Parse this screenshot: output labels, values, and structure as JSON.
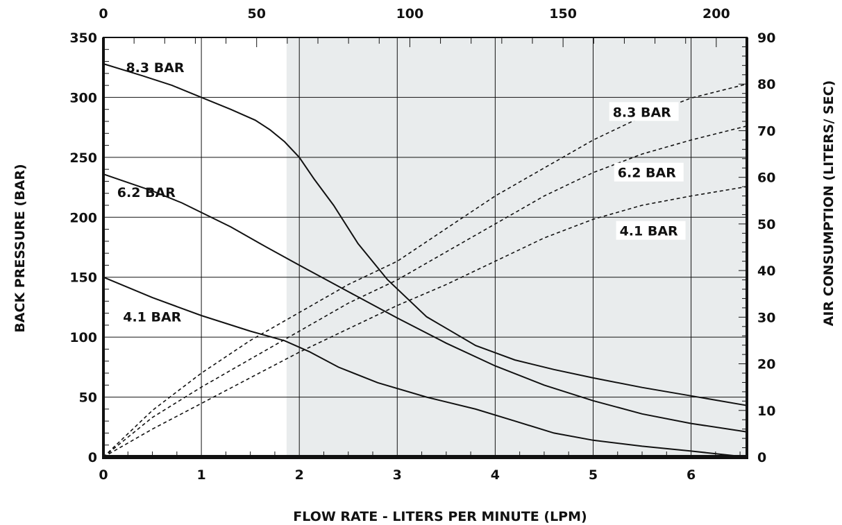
{
  "chart_data": {
    "type": "line",
    "xlabel": "FLOW RATE - LITERS PER MINUTE (LPM)",
    "ylabel_left": "BACK PRESSURE (BAR)",
    "ylabel_right": "AIR CONSUMPTION (LITERS/ SEC)",
    "x_ticks_bottom": [
      "0",
      "1",
      "2",
      "3",
      "4",
      "5",
      "6"
    ],
    "x_ticks_top": [
      "0",
      "50",
      "100",
      "150",
      "200"
    ],
    "y_ticks_left": [
      "0",
      "50",
      "100",
      "150",
      "200",
      "250",
      "300",
      "350"
    ],
    "y_ticks_right": [
      "0",
      "10",
      "20",
      "30",
      "40",
      "50",
      "60",
      "70",
      "80",
      "90"
    ],
    "x_range_lpm": [
      0,
      6.57
    ],
    "x_range_top": [
      0,
      210
    ],
    "y_range_left": [
      0,
      350
    ],
    "y_range_right": [
      0,
      90
    ],
    "shaded_region_x": [
      1.87,
      6.57
    ],
    "grid": true,
    "pressure_series": [
      {
        "name": "8.3 BAR",
        "label": "8.3 BAR",
        "x": [
          0,
          0.4,
          0.7,
          1.0,
          1.3,
          1.55,
          1.7,
          1.85,
          2.0,
          2.15,
          2.35,
          2.6,
          2.9,
          3.3,
          3.8,
          4.2,
          4.6,
          5.0,
          5.5,
          6.0,
          6.57
        ],
        "y": [
          328,
          318,
          310,
          300,
          290,
          281,
          273,
          263,
          250,
          232,
          210,
          178,
          148,
          117,
          93,
          81,
          73,
          66,
          58,
          51,
          43
        ]
      },
      {
        "name": "6.2 BAR",
        "label": "6.2 BAR",
        "x": [
          0,
          0.5,
          0.8,
          1.0,
          1.3,
          1.6,
          2.0,
          2.5,
          3.0,
          3.5,
          4.0,
          4.5,
          5.0,
          5.5,
          6.0,
          6.57
        ],
        "y": [
          236,
          222,
          212,
          204,
          192,
          178,
          160,
          138,
          116,
          95,
          76,
          60,
          47,
          36,
          28,
          21
        ]
      },
      {
        "name": "4.1 BAR",
        "label": "4.1 BAR",
        "x": [
          0,
          0.5,
          1.0,
          1.5,
          1.85,
          2.1,
          2.4,
          2.8,
          3.3,
          3.8,
          4.2,
          4.6,
          5.0,
          5.5,
          6.0,
          6.57
        ],
        "y": [
          150,
          133,
          118,
          105,
          97,
          88,
          75,
          62,
          50,
          40,
          30,
          20,
          14,
          9,
          5,
          0
        ]
      }
    ],
    "air_series": [
      {
        "name": "8.3 BAR",
        "label": "8.3 BAR",
        "x": [
          0,
          0.5,
          1.0,
          1.5,
          2.0,
          2.5,
          3.0,
          3.5,
          4.0,
          4.5,
          5.0,
          5.5,
          6.0,
          6.57
        ],
        "y": [
          0,
          10,
          18,
          25,
          31,
          37,
          42,
          49,
          56,
          62,
          68,
          73,
          77,
          80
        ]
      },
      {
        "name": "6.2 BAR",
        "label": "6.2 BAR",
        "x": [
          0,
          0.5,
          1.0,
          1.5,
          2.0,
          2.5,
          3.0,
          3.5,
          4.0,
          4.5,
          5.0,
          5.5,
          6.0,
          6.57
        ],
        "y": [
          0,
          8.5,
          15,
          21,
          27,
          33,
          38,
          44,
          50,
          56,
          61,
          65,
          68,
          71
        ]
      },
      {
        "name": "4.1 BAR",
        "label": "4.1 BAR",
        "x": [
          0,
          0.5,
          1.0,
          1.5,
          2.0,
          2.5,
          3.0,
          3.5,
          4.0,
          4.5,
          5.0,
          5.5,
          6.0,
          6.57
        ],
        "y": [
          0,
          6,
          11.5,
          17,
          22.5,
          27.5,
          32.5,
          37,
          42,
          47,
          51,
          54,
          56,
          58
        ]
      }
    ],
    "colors": {
      "line": "#111111",
      "shade": "#e9eced",
      "grid": "#111111"
    }
  }
}
